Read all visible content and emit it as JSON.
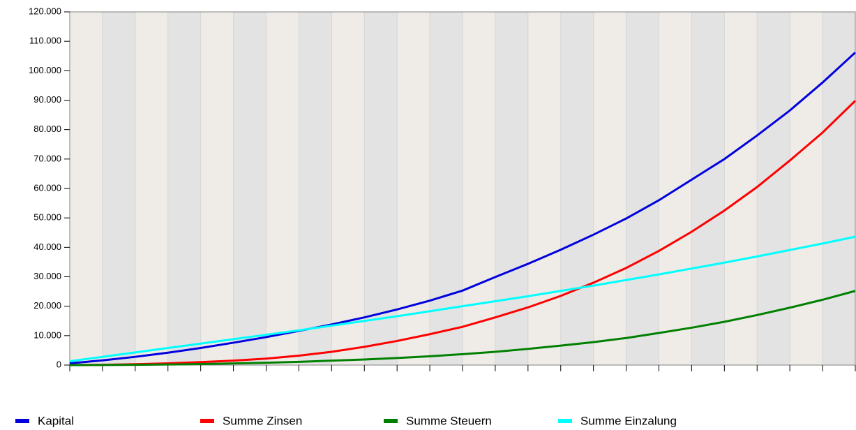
{
  "chart_data": {
    "type": "line",
    "categories": [
      null,
      null,
      null,
      null,
      null,
      null,
      null,
      null,
      null,
      null,
      null,
      null,
      null,
      null,
      null,
      null,
      null,
      null,
      null,
      null,
      null,
      null,
      null,
      null,
      null
    ],
    "series": [
      {
        "name": "Kapital",
        "color": "#0000dd",
        "values": [
          600,
          1600,
          2800,
          4200,
          5800,
          7600,
          9500,
          11600,
          13800,
          16200,
          18900,
          21900,
          25300,
          29900,
          34400,
          39200,
          44300,
          49800,
          56000,
          63000,
          70000,
          78000,
          86500,
          96000,
          106200
        ]
      },
      {
        "name": "Summe Zinsen",
        "color": "#ff0000",
        "values": [
          0,
          100,
          300,
          600,
          1000,
          1500,
          2200,
          3200,
          4500,
          6200,
          8200,
          10500,
          13000,
          16200,
          19600,
          23500,
          28000,
          33000,
          38800,
          45300,
          52500,
          60500,
          69500,
          79000,
          89800
        ]
      },
      {
        "name": "Summe Steuern",
        "color": "#008000",
        "values": [
          0,
          30,
          100,
          200,
          350,
          550,
          800,
          1100,
          1500,
          1900,
          2400,
          3000,
          3700,
          4500,
          5500,
          6600,
          7800,
          9200,
          10900,
          12700,
          14700,
          17000,
          19500,
          22200,
          25200
        ]
      },
      {
        "name": "Summe Einzalung",
        "color": "#00ffff",
        "values": [
          1300,
          2800,
          4300,
          5800,
          7300,
          8800,
          10300,
          11800,
          13400,
          15000,
          16600,
          18300,
          20000,
          21700,
          23400,
          25200,
          27000,
          28900,
          30800,
          32800,
          34800,
          36900,
          39100,
          41300,
          43600
        ]
      }
    ],
    "ylim": [
      0,
      120000
    ],
    "yticks": [
      0,
      {
        "value": 10000,
        "label": "10.000"
      },
      {
        "value": 20000,
        "label": "20.000"
      },
      {
        "value": 30000,
        "label": "30.000"
      },
      {
        "value": 40000,
        "label": "40.000"
      },
      {
        "value": 50000,
        "label": "50.000"
      },
      {
        "value": 60000,
        "label": "60.000"
      },
      {
        "value": 70000,
        "label": "70.000"
      },
      {
        "value": 80000,
        "label": "80.000"
      },
      {
        "value": 90000,
        "label": "90.000"
      },
      {
        "value": 100000,
        "label": "100.000"
      },
      {
        "value": 110000,
        "label": "110.000"
      },
      {
        "value": 120000,
        "label": "120.000"
      }
    ],
    "grid": false,
    "legend": "bottom"
  }
}
